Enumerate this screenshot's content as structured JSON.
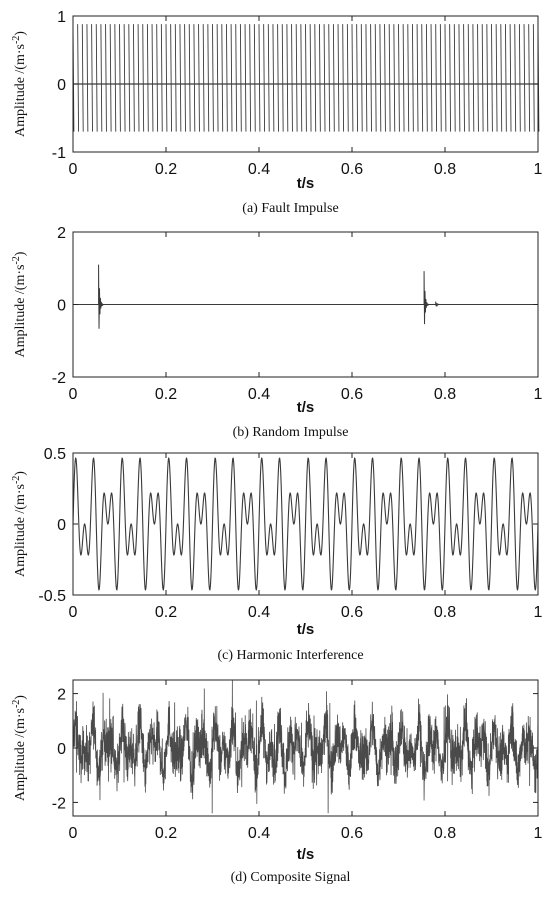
{
  "chart_data": [
    {
      "type": "line",
      "caption": "(a) Fault Impulse",
      "xlabel": "t/s",
      "ylabel": "Amplitude /(m·s",
      "ylabel_sup": "-2",
      "ylabel_close": ")",
      "xlim": [
        0,
        1
      ],
      "ylim": [
        -1,
        1
      ],
      "xticks": [
        0,
        0.2,
        0.4,
        0.6,
        0.8,
        1
      ],
      "xtick_labels": [
        "0",
        "0.2",
        "0.4",
        "0.6",
        "0.8",
        "1"
      ],
      "yticks": [
        -1,
        0,
        1
      ],
      "ytick_labels": [
        "-1",
        "0",
        "1"
      ],
      "grid": false,
      "series": [
        {
          "signal": "periodic-impulse",
          "impulse_period_s": 0.01,
          "peak_max": 0.88,
          "peak_min": -0.7
        }
      ]
    },
    {
      "type": "line",
      "caption": "(b) Random Impulse",
      "xlabel": "t/s",
      "ylabel": "Amplitude /(m·s",
      "ylabel_sup": "-2",
      "ylabel_close": ")",
      "xlim": [
        0,
        1
      ],
      "ylim": [
        -2,
        2
      ],
      "xticks": [
        0,
        0.2,
        0.4,
        0.6,
        0.8,
        1
      ],
      "xtick_labels": [
        "0",
        "0.2",
        "0.4",
        "0.6",
        "0.8",
        "1"
      ],
      "yticks": [
        -2,
        0,
        2
      ],
      "ytick_labels": [
        "-2",
        "0",
        "2"
      ],
      "grid": false,
      "series": [
        {
          "signal": "random-impulse",
          "impulses": [
            {
              "t": 0.055,
              "peak_max": 1.1,
              "peak_min": -1.05
            },
            {
              "t": 0.755,
              "peak_max": 0.92,
              "peak_min": -0.85
            },
            {
              "t": 0.78,
              "peak_max": 0.08,
              "peak_min": -0.08
            }
          ]
        }
      ]
    },
    {
      "type": "line",
      "caption": "(c) Harmonic Interference",
      "xlabel": "t/s",
      "ylabel": "Amplitude /(m·s",
      "ylabel_sup": "-2",
      "ylabel_close": ")",
      "xlim": [
        0,
        1
      ],
      "ylim": [
        -0.5,
        0.5
      ],
      "xticks": [
        0,
        0.2,
        0.4,
        0.6,
        0.8,
        1
      ],
      "xtick_labels": [
        "0",
        "0.2",
        "0.4",
        "0.6",
        "0.8",
        "1"
      ],
      "yticks": [
        -0.5,
        0,
        0.5
      ],
      "ytick_labels": [
        "-0.5",
        "0",
        "0.5"
      ],
      "grid": false,
      "series": [
        {
          "signal": "harmonic",
          "components": [
            {
              "amplitude": 0.25,
              "frequency_hz": 30
            },
            {
              "amplitude": 0.25,
              "frequency_hz": 50
            }
          ]
        }
      ]
    },
    {
      "type": "line",
      "caption": "(d) Composite Signal",
      "xlabel": "t/s",
      "ylabel": "Amplitude /(m·s",
      "ylabel_sup": "-2",
      "ylabel_close": ")",
      "xlim": [
        0,
        1
      ],
      "ylim": [
        -2.5,
        2.5
      ],
      "xticks": [
        0,
        0.2,
        0.4,
        0.6,
        0.8,
        1
      ],
      "xtick_labels": [
        "0",
        "0.2",
        "0.4",
        "0.6",
        "0.8",
        "1"
      ],
      "yticks": [
        -2,
        0,
        2
      ],
      "ytick_labels": [
        "-2",
        "0",
        "2"
      ],
      "grid": false,
      "series": [
        {
          "signal": "composite-noise",
          "typical_range": [
            -1.2,
            1.2
          ],
          "extreme_range": [
            -2.4,
            2.5
          ]
        }
      ]
    }
  ],
  "colors": {
    "line": "#3a3a3a",
    "composite": "#4a4a4a",
    "axis": "#222222",
    "background": "#ffffff"
  }
}
